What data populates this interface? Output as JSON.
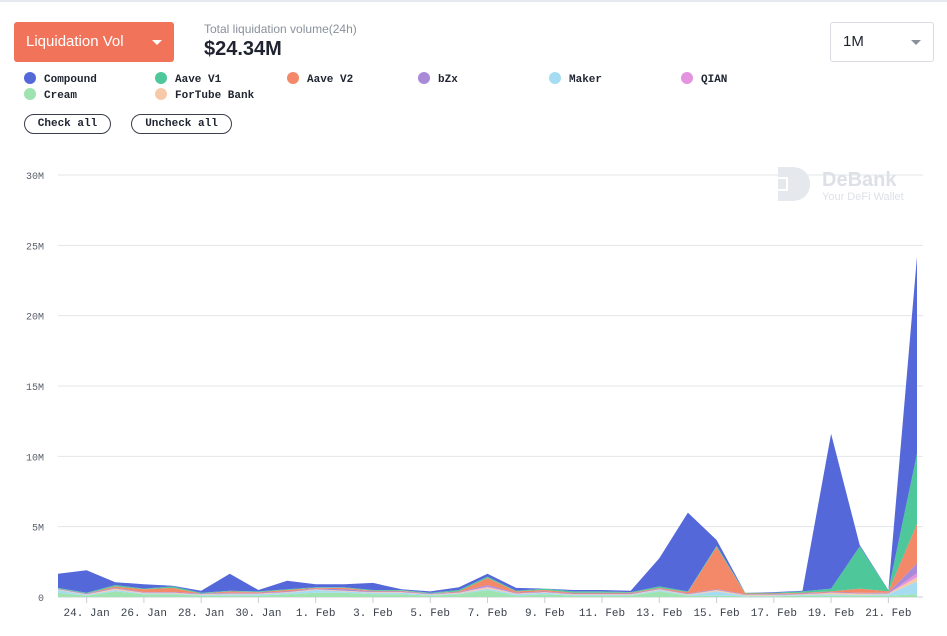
{
  "header": {
    "dropdown_label": "Liquidation Vol",
    "total_label": "Total liquidation volume(24h)",
    "total_value": "$24.34M",
    "range_label": "1M"
  },
  "legend": [
    {
      "name": "Compound",
      "color": "#5568d9"
    },
    {
      "name": "Aave V1",
      "color": "#4ec79a"
    },
    {
      "name": "Aave V2",
      "color": "#f4896a"
    },
    {
      "name": "bZx",
      "color": "#a98ad8"
    },
    {
      "name": "Maker",
      "color": "#a6dcf2"
    },
    {
      "name": "QIAN",
      "color": "#e493e0"
    },
    {
      "name": "Cream",
      "color": "#9ee3b0"
    },
    {
      "name": "ForTube Bank",
      "color": "#f8c9a9"
    }
  ],
  "buttons": {
    "check_all": "Check all",
    "uncheck_all": "Uncheck all"
  },
  "watermark": {
    "brand": "DeBank",
    "tagline": "Your DeFi Wallet"
  },
  "chart_data": {
    "type": "area",
    "stacked": true,
    "y_unit": "M",
    "ylim": [
      0,
      30
    ],
    "yticks": [
      "0",
      "5M",
      "10M",
      "15M",
      "20M",
      "25M",
      "30M"
    ],
    "x_tick_labels": [
      "24. Jan",
      "26. Jan",
      "28. Jan",
      "30. Jan",
      "1. Feb",
      "3. Feb",
      "5. Feb",
      "7. Feb",
      "9. Feb",
      "11. Feb",
      "13. Feb",
      "15. Feb",
      "17. Feb",
      "19. Feb",
      "21. Feb"
    ],
    "x": [
      "23 Jan",
      "24 Jan",
      "25 Jan",
      "26 Jan",
      "27 Jan",
      "28 Jan",
      "29 Jan",
      "30 Jan",
      "31 Jan",
      "1 Feb",
      "2 Feb",
      "3 Feb",
      "4 Feb",
      "5 Feb",
      "6 Feb",
      "7 Feb",
      "8 Feb",
      "9 Feb",
      "10 Feb",
      "11 Feb",
      "12 Feb",
      "13 Feb",
      "14 Feb",
      "15 Feb",
      "16 Feb",
      "17 Feb",
      "18 Feb",
      "19 Feb",
      "20 Feb",
      "21 Feb",
      "22 Feb"
    ],
    "series": [
      {
        "name": "Cream",
        "color": "#9ee3b0",
        "values": [
          0.3,
          0.1,
          0.4,
          0.2,
          0.2,
          0.1,
          0.1,
          0.1,
          0.2,
          0.3,
          0.3,
          0.2,
          0.2,
          0.1,
          0.2,
          0.5,
          0.1,
          0.2,
          0.1,
          0.1,
          0.1,
          0.4,
          0.1,
          0.1,
          0.05,
          0.05,
          0.1,
          0.1,
          0.1,
          0.1,
          0.2
        ]
      },
      {
        "name": "Maker",
        "color": "#a6dcf2",
        "values": [
          0.2,
          0.05,
          0.1,
          0.05,
          0.05,
          0.05,
          0.1,
          0.1,
          0.1,
          0.2,
          0.1,
          0.1,
          0.1,
          0.05,
          0.05,
          0.1,
          0.1,
          0.1,
          0.05,
          0.05,
          0.05,
          0.1,
          0.05,
          0.3,
          0.05,
          0.05,
          0.05,
          0.1,
          0.05,
          0.1,
          0.9
        ]
      },
      {
        "name": "ForTube Bank",
        "color": "#f8c9a9",
        "values": [
          0.05,
          0.05,
          0.1,
          0.05,
          0.05,
          0.05,
          0.05,
          0.05,
          0.05,
          0.05,
          0.05,
          0.05,
          0.05,
          0.05,
          0.05,
          0.1,
          0.05,
          0.05,
          0.05,
          0.05,
          0.05,
          0.05,
          0.05,
          0.1,
          0.05,
          0.05,
          0.05,
          0.1,
          0.1,
          0.05,
          0.3
        ]
      },
      {
        "name": "QIAN",
        "color": "#e493e0",
        "values": [
          0,
          0,
          0,
          0,
          0,
          0,
          0,
          0,
          0,
          0,
          0,
          0,
          0,
          0,
          0,
          0.05,
          0,
          0,
          0,
          0,
          0,
          0,
          0,
          0,
          0,
          0,
          0,
          0,
          0,
          0,
          0.3
        ]
      },
      {
        "name": "bZx",
        "color": "#a98ad8",
        "values": [
          0.05,
          0.05,
          0.05,
          0.05,
          0.05,
          0.05,
          0.05,
          0.05,
          0.05,
          0.05,
          0.1,
          0.05,
          0.05,
          0.05,
          0.05,
          0.1,
          0.05,
          0.05,
          0.05,
          0.05,
          0.05,
          0.05,
          0.05,
          0.05,
          0.05,
          0.05,
          0.05,
          0.05,
          0.05,
          0.05,
          0.7
        ]
      },
      {
        "name": "Aave V2",
        "color": "#f4896a",
        "values": [
          0,
          0,
          0.1,
          0.2,
          0.3,
          0,
          0.1,
          0.05,
          0.1,
          0.05,
          0.1,
          0.05,
          0.05,
          0,
          0.05,
          0.5,
          0.1,
          0.1,
          0.05,
          0.05,
          0.05,
          0.05,
          0.1,
          3.0,
          0.05,
          0.05,
          0.05,
          0.05,
          0.3,
          0.1,
          2.8
        ]
      },
      {
        "name": "Aave V1",
        "color": "#4ec79a",
        "values": [
          0.05,
          0.05,
          0.1,
          0.05,
          0.1,
          0.05,
          0.05,
          0.05,
          0.05,
          0.05,
          0.05,
          0.05,
          0.05,
          0.05,
          0.1,
          0.1,
          0.05,
          0.1,
          0.1,
          0.1,
          0.05,
          0.1,
          0.05,
          0.1,
          0.05,
          0.05,
          0.1,
          0.2,
          3.0,
          0.1,
          5.0
        ]
      },
      {
        "name": "Compound",
        "color": "#5568d9",
        "values": [
          1.0,
          1.6,
          0.2,
          0.3,
          0.05,
          0.15,
          1.2,
          0.1,
          0.6,
          0.2,
          0.2,
          0.5,
          0.05,
          0.1,
          0.2,
          0.2,
          0.2,
          0.0,
          0.1,
          0.1,
          0.1,
          2.0,
          5.6,
          0.4,
          0,
          0.05,
          0.05,
          11.0,
          0.1,
          0,
          14.0
        ]
      }
    ]
  }
}
